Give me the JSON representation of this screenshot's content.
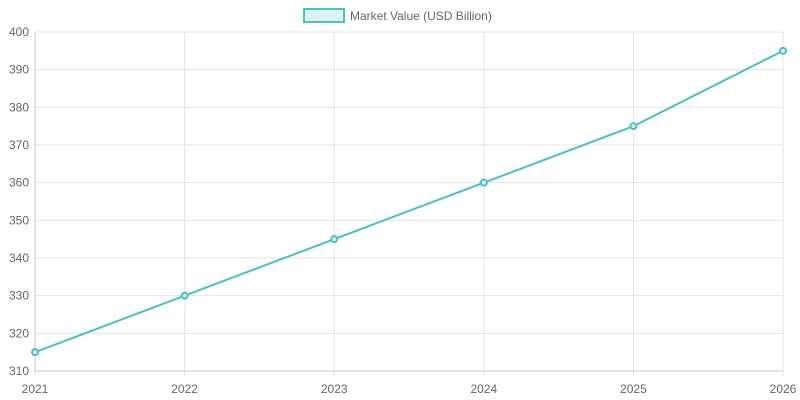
{
  "chart_data": {
    "type": "line",
    "categories": [
      "2021",
      "2022",
      "2023",
      "2024",
      "2025",
      "2026"
    ],
    "series": [
      {
        "name": "Market Value (USD Billion)",
        "values": [
          315,
          330,
          345,
          360,
          375,
          395
        ]
      }
    ],
    "ylim": [
      310,
      400
    ],
    "yticks": [
      310,
      320,
      330,
      340,
      350,
      360,
      370,
      380,
      390,
      400
    ],
    "grid": true,
    "legend_position": "top-center",
    "colors": {
      "line": "#4bc0c0",
      "point_fill": "#d8f2f2",
      "legend_fill": "#dbf2f2"
    }
  }
}
